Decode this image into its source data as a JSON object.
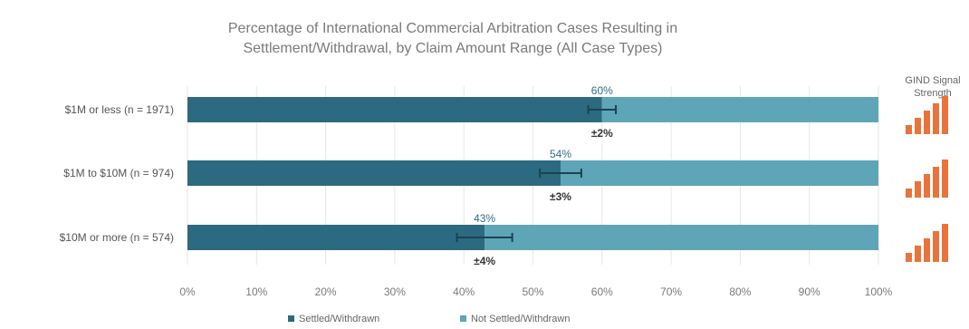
{
  "chart_data": {
    "type": "bar",
    "orientation": "horizontal",
    "stacked": true,
    "title": "Percentage of International Commercial Arbitration Cases Resulting in Settlement/Withdrawal, by Claim Amount Range (All Case Types)",
    "title_lines": [
      "Percentage of International Commercial Arbitration Cases Resulting in",
      "Settlement/Withdrawal, by Claim Amount Range (All Case Types)"
    ],
    "categories": [
      "$1M or less (n = 1971)",
      "$1M to $10M (n = 974)",
      "$10M or more (n = 574)"
    ],
    "series": [
      {
        "name": "Settled/Withdrawn",
        "values": [
          60,
          54,
          43
        ],
        "color": "#2b6a80"
      },
      {
        "name": "Not Settled/Withdrawn",
        "values": [
          40,
          46,
          57
        ],
        "color": "#5ea5b8"
      }
    ],
    "value_labels": [
      "60%",
      "54%",
      "43%"
    ],
    "margins_of_error": [
      2,
      3,
      4
    ],
    "moe_labels": [
      "±2%",
      "±3%",
      "±4%"
    ],
    "xlim": [
      0,
      100
    ],
    "x_ticks": [
      "0%",
      "10%",
      "20%",
      "30%",
      "40%",
      "50%",
      "60%",
      "70%",
      "80%",
      "90%",
      "100%"
    ],
    "grid": true,
    "legend_position": "bottom",
    "signal_panel": {
      "title_lines": [
        "GIND Signal",
        "Strength"
      ],
      "color": "#e8743b",
      "levels": [
        5,
        5,
        5
      ]
    }
  }
}
